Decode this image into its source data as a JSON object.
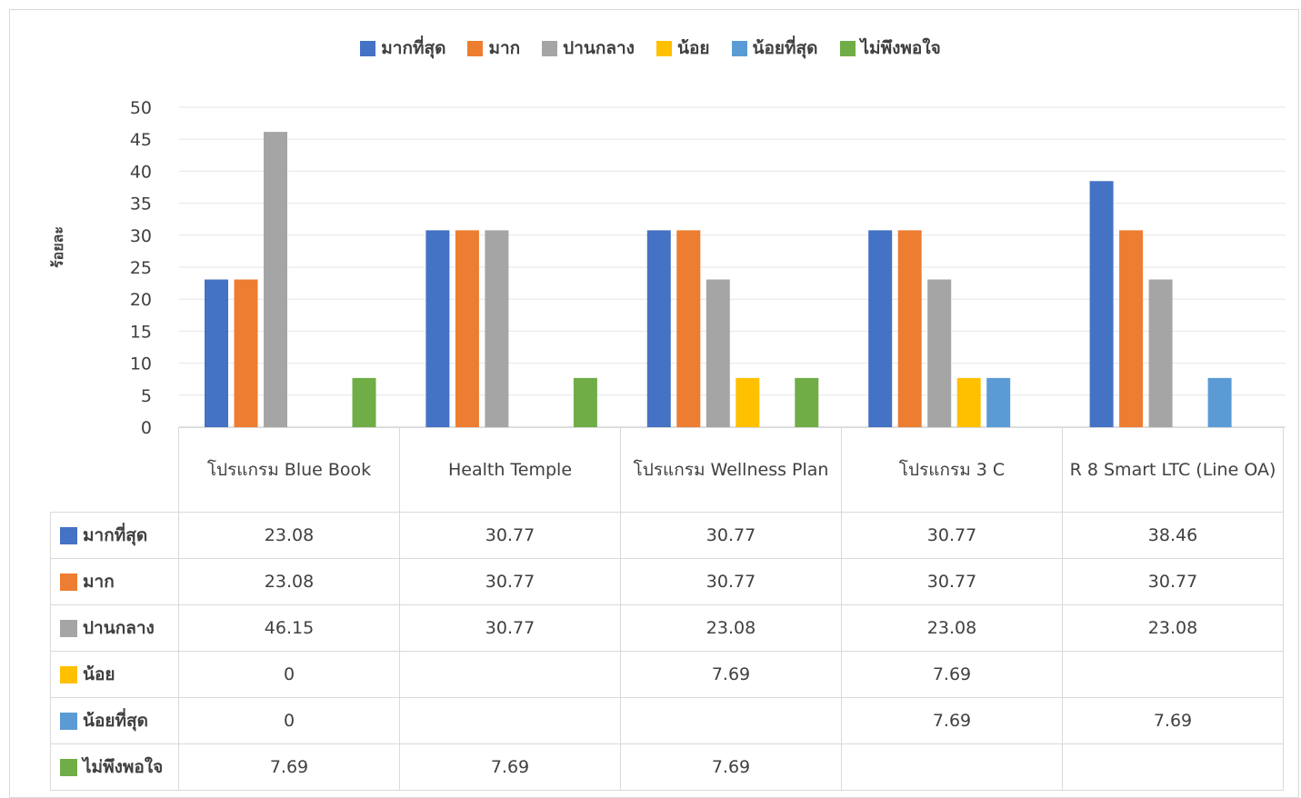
{
  "chart_data": {
    "type": "bar",
    "title": "",
    "xlabel": "",
    "ylabel": "ร้อยละ",
    "ylim": [
      0,
      50
    ],
    "yticks": [
      0,
      5,
      10,
      15,
      20,
      25,
      30,
      35,
      40,
      45,
      50
    ],
    "grid": true,
    "legend_position": "top",
    "categories": [
      "โปรแกรม Blue Book",
      "Health Temple",
      "โปรแกรม Wellness Plan",
      "โปรแกรม 3 C",
      "R 8 Smart LTC (Line OA)"
    ],
    "series": [
      {
        "name": "มากที่สุด",
        "color": "#4472c4",
        "values": [
          23.08,
          30.77,
          30.77,
          30.77,
          38.46
        ]
      },
      {
        "name": "มาก",
        "color": "#ed7d31",
        "values": [
          23.08,
          30.77,
          30.77,
          30.77,
          30.77
        ]
      },
      {
        "name": "ปานกลาง",
        "color": "#a5a5a5",
        "values": [
          46.15,
          30.77,
          23.08,
          23.08,
          23.08
        ]
      },
      {
        "name": "น้อย",
        "color": "#ffc000",
        "values": [
          0,
          null,
          7.69,
          7.69,
          null
        ]
      },
      {
        "name": "น้อยที่สุด",
        "color": "#5b9bd5",
        "values": [
          0,
          null,
          null,
          7.69,
          7.69
        ]
      },
      {
        "name": "ไม่พึงพอใจ",
        "color": "#70ad47",
        "values": [
          7.69,
          7.69,
          7.69,
          null,
          null
        ]
      }
    ],
    "data_table": true
  }
}
